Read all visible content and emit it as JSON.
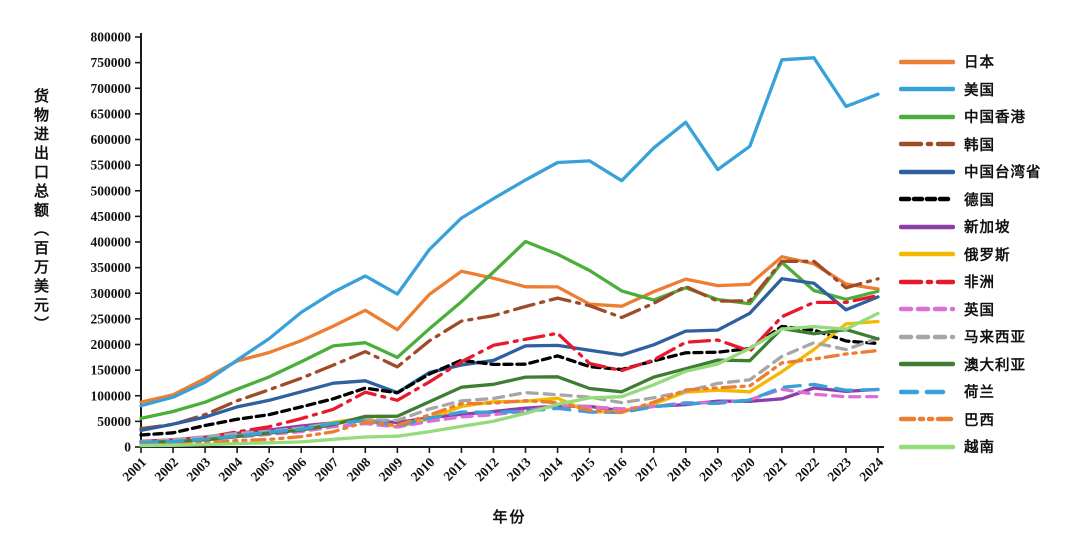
{
  "chart_data": {
    "type": "line",
    "title": "",
    "xlabel": "年份",
    "ylabel": "货物进出口总额（百万美元）",
    "x": [
      "2001",
      "2002",
      "2003",
      "2004",
      "2005",
      "2006",
      "2007",
      "2008",
      "2009",
      "2010",
      "2011",
      "2012",
      "2013",
      "2014",
      "2015",
      "2016",
      "2017",
      "2018",
      "2019",
      "2020",
      "2021",
      "2022",
      "2023",
      "2024"
    ],
    "ylim": [
      0,
      800000
    ],
    "ytick_step": 50000,
    "grid": false,
    "legend_position": "right",
    "axis_color": "#1a1a1a",
    "series": [
      {
        "id": "japan",
        "name": "日本",
        "color": "#ED7D31",
        "dash": "solid",
        "values": [
          87700,
          101900,
          133600,
          167900,
          184400,
          207400,
          236000,
          266800,
          228900,
          297800,
          342900,
          329400,
          312600,
          312400,
          278700,
          274800,
          303000,
          327700,
          315000,
          317500,
          371400,
          357400,
          318000,
          308300
        ]
      },
      {
        "id": "usa",
        "name": "美国",
        "color": "#39A1DA",
        "dash": "solid",
        "values": [
          80500,
          97200,
          126300,
          169600,
          211600,
          262700,
          302100,
          333700,
          298300,
          385300,
          446600,
          484700,
          521000,
          555100,
          558300,
          519600,
          583700,
          633500,
          541200,
          586700,
          755600,
          759400,
          664500,
          688300
        ]
      },
      {
        "id": "hong-kong-china",
        "name": "中国香港",
        "color": "#4CAE3A",
        "dash": "solid",
        "values": [
          55900,
          69200,
          87400,
          112700,
          136700,
          166200,
          197200,
          203600,
          174900,
          230600,
          283500,
          341500,
          401000,
          376000,
          344300,
          304600,
          286600,
          310600,
          287900,
          279600,
          360200,
          305300,
          288100,
          303800
        ]
      },
      {
        "id": "south-korea",
        "name": "韩国",
        "color": "#9E4B28",
        "dash": "dash-dot",
        "values": [
          35900,
          44100,
          63200,
          90100,
          111900,
          134300,
          159900,
          186100,
          156200,
          207200,
          245600,
          256300,
          274200,
          290500,
          275800,
          252600,
          280300,
          313400,
          284500,
          285300,
          362400,
          362300,
          310700,
          328100
        ]
      },
      {
        "id": "taiwan-china",
        "name": "中国台湾省",
        "color": "#2E5F9E",
        "dash": "solid",
        "values": [
          32300,
          44600,
          58400,
          78300,
          91200,
          107800,
          124500,
          129200,
          106200,
          145400,
          160000,
          168900,
          197300,
          198300,
          188600,
          179600,
          199400,
          226200,
          228100,
          260800,
          328300,
          319700,
          267800,
          292900
        ]
      },
      {
        "id": "germany",
        "name": "德国",
        "color": "#000000",
        "dash": "short-dash",
        "values": [
          23500,
          27800,
          41900,
          54100,
          63300,
          78200,
          94100,
          115000,
          105700,
          142400,
          169200,
          161100,
          161600,
          177800,
          156800,
          151300,
          168100,
          183900,
          184900,
          192100,
          235100,
          228100,
          206800,
          201900
        ]
      },
      {
        "id": "singapore",
        "name": "新加坡",
        "color": "#8A3FA8",
        "dash": "solid",
        "values": [
          10900,
          14000,
          19300,
          26700,
          33100,
          40900,
          47200,
          52400,
          47900,
          57100,
          63600,
          69300,
          75900,
          79700,
          79300,
          70800,
          79200,
          82800,
          89600,
          89100,
          94100,
          115100,
          108400,
          112300
        ]
      },
      {
        "id": "russia",
        "name": "俄罗斯",
        "color": "#F5B800",
        "dash": "solid",
        "values": [
          10700,
          11900,
          15800,
          21200,
          29100,
          33400,
          48200,
          56800,
          38800,
          55400,
          79200,
          88200,
          89200,
          95300,
          68000,
          69500,
          84000,
          107100,
          110800,
          107800,
          146900,
          190300,
          240100,
          244800
        ]
      },
      {
        "id": "africa",
        "name": "非洲",
        "color": "#E8192C",
        "dash": "dash-dot",
        "values": [
          10800,
          12400,
          18500,
          29500,
          39700,
          55500,
          73600,
          107000,
          91200,
          127000,
          166200,
          198500,
          210200,
          221900,
          163000,
          149100,
          170000,
          204200,
          208700,
          187000,
          254300,
          282100,
          282100,
          295600
        ]
      },
      {
        "id": "uk",
        "name": "英国",
        "color": "#DC6FD6",
        "dash": "dash",
        "values": [
          10300,
          11400,
          14400,
          19700,
          24500,
          30300,
          39400,
          45600,
          39100,
          50100,
          58700,
          63100,
          70000,
          80900,
          78500,
          74300,
          79000,
          86300,
          86300,
          92300,
          112600,
          103000,
          97900,
          98400
        ]
      },
      {
        "id": "malaysia",
        "name": "马来西亚",
        "color": "#A6A6A6",
        "dash": "dash",
        "values": [
          9400,
          14300,
          20100,
          26300,
          30700,
          37100,
          46400,
          53500,
          52000,
          74200,
          90000,
          94800,
          106100,
          102000,
          97400,
          86500,
          96000,
          108600,
          124000,
          131200,
          176800,
          203600,
          190200,
          212000
        ]
      },
      {
        "id": "australia",
        "name": "澳大利亚",
        "color": "#3E7D32",
        "dash": "solid",
        "values": [
          9000,
          10400,
          13600,
          20400,
          27300,
          32900,
          43800,
          59700,
          60100,
          88100,
          116600,
          122300,
          136400,
          136900,
          114100,
          107800,
          136300,
          152700,
          169600,
          168300,
          231200,
          220900,
          229100,
          211000
        ]
      },
      {
        "id": "netherlands",
        "name": "荷兰",
        "color": "#39A1DA",
        "dash": "long-dash",
        "values": [
          9100,
          10500,
          15400,
          21300,
          28800,
          34500,
          46300,
          51300,
          41700,
          56100,
          68200,
          67600,
          70100,
          75400,
          68300,
          67300,
          78400,
          85200,
          85100,
          91700,
          116400,
          122100,
          110800,
          112000
        ]
      },
      {
        "id": "brazil",
        "name": "巴西",
        "color": "#ED7D31",
        "dash": "dash-dot-dot",
        "values": [
          3700,
          4500,
          8000,
          12400,
          14800,
          20300,
          29700,
          48700,
          42400,
          62500,
          84200,
          85700,
          90300,
          86600,
          71600,
          67700,
          87500,
          111200,
          115300,
          119300,
          164100,
          171500,
          181500,
          188200
        ]
      },
      {
        "id": "vietnam",
        "name": "越南",
        "color": "#94DB7B",
        "dash": "solid",
        "values": [
          2800,
          3300,
          4600,
          6700,
          8200,
          9900,
          15100,
          19500,
          21000,
          30100,
          40200,
          50400,
          65500,
          83600,
          95800,
          98200,
          121300,
          147800,
          162000,
          192300,
          230200,
          234900,
          229800,
          260700
        ]
      }
    ]
  }
}
